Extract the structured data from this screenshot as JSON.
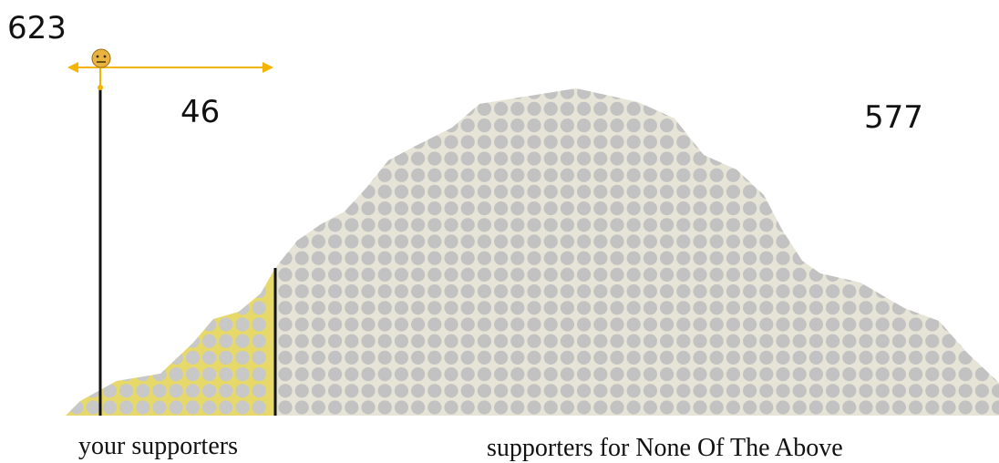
{
  "total_count": "623",
  "your_count": "46",
  "other_count": "577",
  "your_label": "your supporters",
  "other_label": "supporters for None Of The Above",
  "colors": {
    "yours_fill": "#e6d96a",
    "yours_dot": "#c8c8c8",
    "others_fill": "#e6e4d6",
    "others_dot": "#c2c2c2",
    "arrow": "#f5b400",
    "face": "#e8b341",
    "line": "#111111"
  },
  "icons": [
    "neutral-face-icon",
    "double-arrow-icon"
  ]
}
